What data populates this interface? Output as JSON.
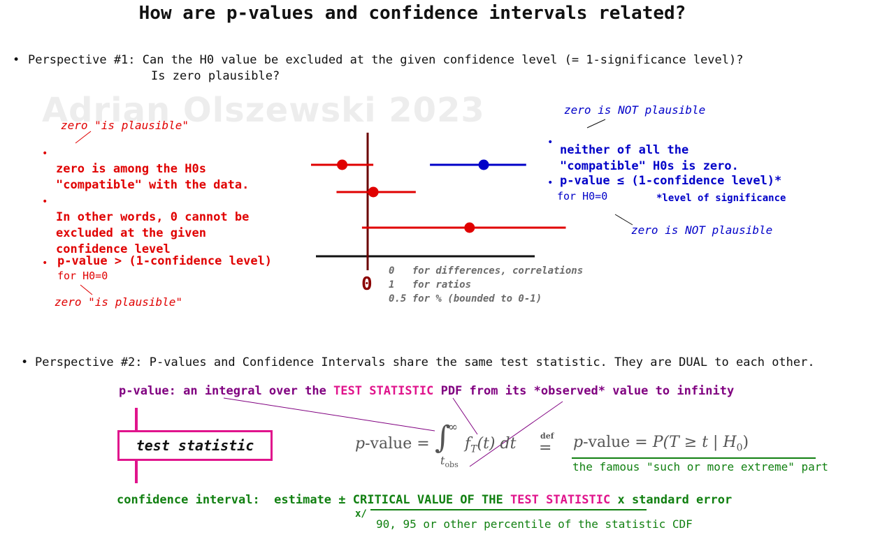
{
  "title": "How are p-values and confidence intervals related?",
  "watermark": "Adrian Olszewski 2023",
  "perspective1": {
    "bullet": "•",
    "line1": "Perspective #1: Can the H0 value be excluded at the given confidence level (= 1-significance level)?",
    "line2": "Is zero plausible?"
  },
  "left_panel": {
    "annotation_top": "zero \"is plausible\"",
    "point1_line1": "zero is among the H0s",
    "point1_line2": "\"compatible\" with the data.",
    "point2_line1": "In other words, 0 cannot be",
    "point2_line2": "excluded at the given",
    "point2_line3": "confidence level",
    "point3": "p-value > (1-confidence level)",
    "point3_sub": "for H0=0",
    "annotation_bottom": "zero \"is plausible\""
  },
  "right_panel": {
    "annotation_top": "zero is NOT plausible",
    "point1_line1": "neither of all the",
    "point1_line2": "\"compatible\" H0s is zero.",
    "point2": "p-value ≤ (1-confidence level)*",
    "point2_sub": "for H0=0",
    "footnote": "*level of significance",
    "annotation_bottom": "zero is NOT plausible"
  },
  "forest_plot": {
    "zero_label": "0",
    "note1": "0   for differences, correlations",
    "note2": "1   for ratios",
    "note3": "0.5 for % (bounded to 0-1)",
    "intervals": [
      {
        "estimate": -0.45,
        "lower": -1.0,
        "upper": 0.1,
        "color": "#e00000"
      },
      {
        "estimate": 2.05,
        "lower": 1.1,
        "upper": 2.8,
        "color": "#0000c8"
      },
      {
        "estimate": 0.1,
        "lower": -0.55,
        "upper": 0.85,
        "color": "#e00000"
      },
      {
        "estimate": 1.8,
        "lower": -0.1,
        "upper": 3.5,
        "color": "#e00000"
      }
    ],
    "colors": {
      "red": "#e00000",
      "blue": "#0000c8",
      "axis": "#111111",
      "zero_line": "#6b0000"
    }
  },
  "perspective2": {
    "bullet": "•",
    "line": "Perspective #2: P-values and Confidence Intervals share the same test statistic. They are DUAL to each other.",
    "pvalue_part1": "p-value: an integral over the ",
    "pvalue_part2": "TEST STATISTIC",
    "pvalue_part3": " PDF from its *observed* value to infinity",
    "test_statistic_box": "test statistic",
    "def_label": "def",
    "famous_part": "the famous \"such or more extreme\" part",
    "ci_part1": "confidence interval:  estimate ± ",
    "ci_part2": "CRITICAL VALUE OF THE ",
    "ci_part3": "TEST STATISTIC",
    "ci_part4": " x standard error",
    "ci_xslash": "x/",
    "ci_sub": "90, 95 or other percentile of the statistic CDF"
  },
  "formula": {
    "lhs_p": "p",
    "lhs_value": "-value = ",
    "integral": "∫",
    "upper_limit": "∞",
    "lower_limit": "t",
    "lower_sub": "obs",
    "integrand_f": "f",
    "integrand_sub": "T",
    "integrand_rest": "(t) dt",
    "rhs_p": "p",
    "rhs_value": "-value = ",
    "rhs_expr": "P(T ≥ t | H",
    "rhs_sub": "0",
    "rhs_close": ")"
  }
}
